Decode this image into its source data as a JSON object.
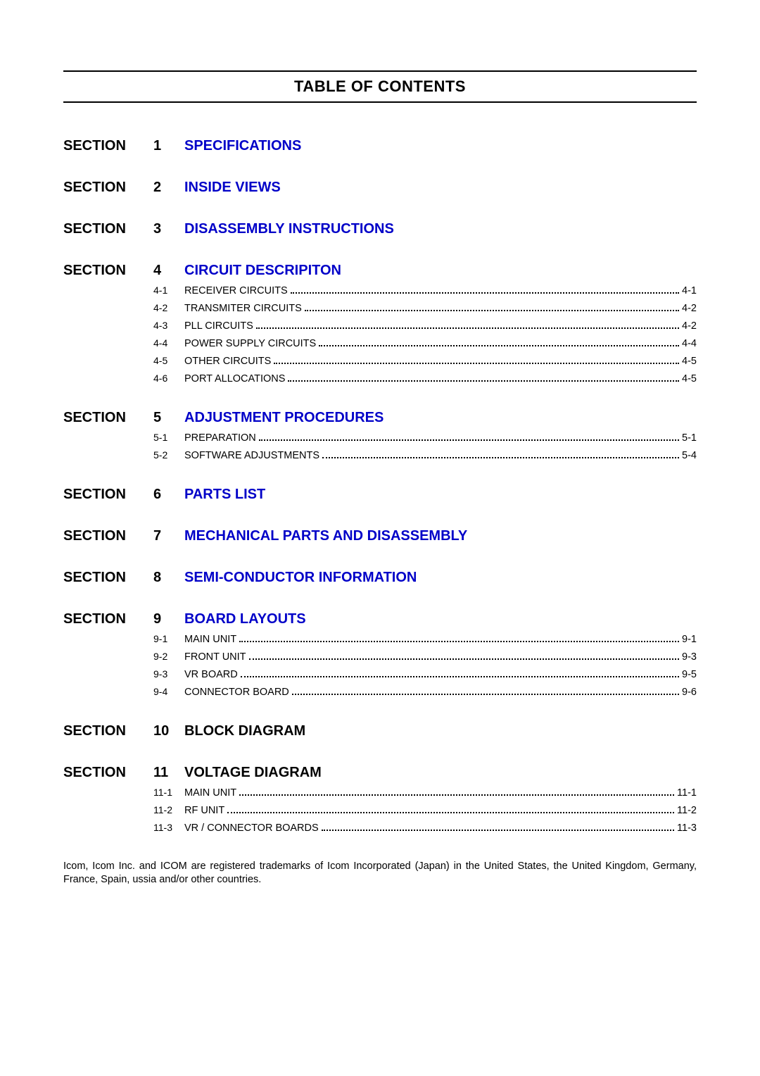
{
  "title": "TABLE OF CONTENTS",
  "section_label": "SECTION",
  "sections": [
    {
      "num": "1",
      "title": "SPECIFICATIONS",
      "link": true
    },
    {
      "num": "2",
      "title": "INSIDE VIEWS",
      "link": true
    },
    {
      "num": "3",
      "title": "DISASSEMBLY INSTRUCTIONS",
      "link": true
    },
    {
      "num": "4",
      "title": "CIRCUIT DESCRIPITON",
      "link": true,
      "subs": [
        {
          "num": "4-1",
          "label": "RECEIVER CIRCUITS",
          "page": "4-1"
        },
        {
          "num": "4-2",
          "label": "TRANSMITER CIRCUITS",
          "page": "4-2"
        },
        {
          "num": "4-3",
          "label": "PLL CIRCUITS",
          "page": "4-2"
        },
        {
          "num": "4-4",
          "label": "POWER SUPPLY CIRCUITS",
          "page": "4-4"
        },
        {
          "num": "4-5",
          "label": "OTHER CIRCUITS",
          "page": "4-5"
        },
        {
          "num": "4-6",
          "label": "PORT ALLOCATIONS",
          "page": "4-5"
        }
      ]
    },
    {
      "num": "5",
      "title": "ADJUSTMENT PROCEDURES",
      "link": true,
      "subs": [
        {
          "num": "5-1",
          "label": "PREPARATION",
          "page": "5-1"
        },
        {
          "num": "5-2",
          "label": "SOFTWARE ADJUSTMENTS",
          "page": "5-4"
        }
      ]
    },
    {
      "num": "6",
      "title": "PARTS LIST",
      "link": true
    },
    {
      "num": "7",
      "title": "MECHANICAL PARTS AND DISASSEMBLY",
      "link": true
    },
    {
      "num": "8",
      "title": "SEMI-CONDUCTOR INFORMATION",
      "link": true
    },
    {
      "num": "9",
      "title": "BOARD LAYOUTS",
      "link": true,
      "subs": [
        {
          "num": "9-1",
          "label": "MAIN UNIT",
          "page": "9-1"
        },
        {
          "num": "9-2",
          "label": "FRONT UNIT",
          "page": "9-3"
        },
        {
          "num": "9-3",
          "label": "VR BOARD",
          "page": "9-5"
        },
        {
          "num": "9-4",
          "label": "CONNECTOR BOARD",
          "page": "9-6"
        }
      ]
    },
    {
      "num": "10",
      "title": "BLOCK DIAGRAM",
      "link": false
    },
    {
      "num": "11",
      "title": "VOLTAGE DIAGRAM",
      "link": false,
      "subs": [
        {
          "num": "11-1",
          "label": "MAIN UNIT",
          "page": "11-1"
        },
        {
          "num": "11-2",
          "label": "RF UNIT",
          "page": "11-2"
        },
        {
          "num": "11-3",
          "label": "VR / CONNECTOR BOARDS",
          "page": "11-3"
        }
      ]
    }
  ],
  "footnote_parts": {
    "a": "Icom, Icom Inc. and ",
    "brand": "ICOM",
    "b": " are registered trademarks of Icom Incorporated (Japan) in the United States, the United Kingdom, Germany, France, Spain, ussia and/or other countries."
  },
  "colors": {
    "link": "#0000c8",
    "text": "#000000",
    "bg": "#ffffff"
  }
}
